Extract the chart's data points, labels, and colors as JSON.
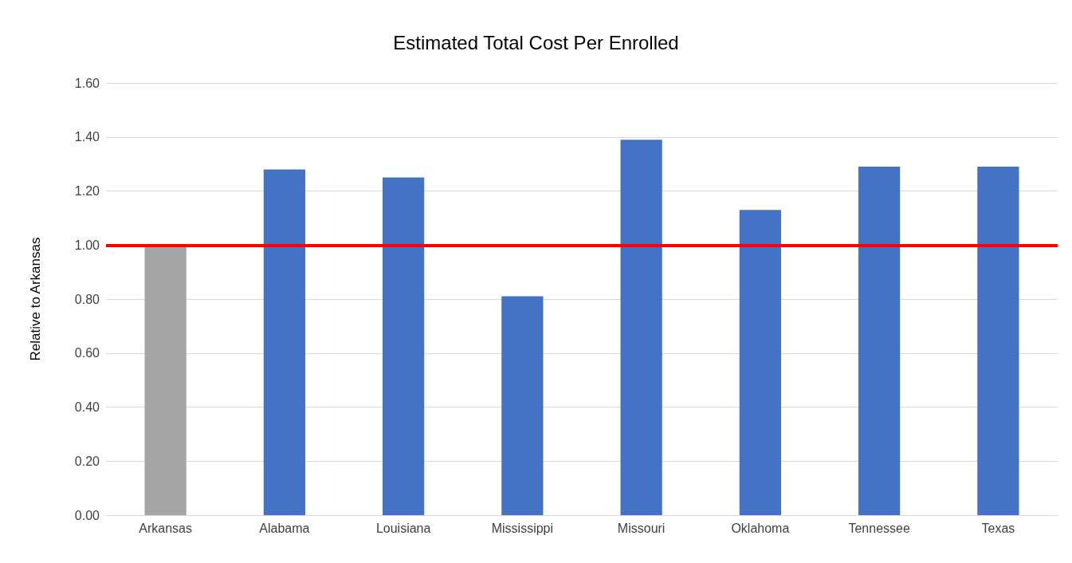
{
  "chart_data": {
    "type": "bar",
    "title": "Estimated Total Cost Per Enrolled",
    "ylabel": "Relative to Arkansas",
    "categories": [
      "Arkansas",
      "Alabama",
      "Louisiana",
      "Mississippi",
      "Missouri",
      "Oklahoma",
      "Tennessee",
      "Texas"
    ],
    "values": [
      1.0,
      1.28,
      1.25,
      0.81,
      1.39,
      1.13,
      1.29,
      1.29
    ],
    "colors": [
      "#a5a5a5",
      "#4472c4",
      "#4472c4",
      "#4472c4",
      "#4472c4",
      "#4472c4",
      "#4472c4",
      "#4472c4"
    ],
    "ylim": [
      0,
      1.6
    ],
    "yticks": [
      {
        "value": 0,
        "label": "0.00"
      },
      {
        "value": 0.2,
        "label": "0.20"
      },
      {
        "value": 0.4,
        "label": "0.40"
      },
      {
        "value": 0.6,
        "label": "0.60"
      },
      {
        "value": 0.8,
        "label": "0.80"
      },
      {
        "value": 1,
        "label": "1.00"
      },
      {
        "value": 1.2,
        "label": "1.20"
      },
      {
        "value": 1.4,
        "label": "1.40"
      },
      {
        "value": 1.6,
        "label": "1.60"
      }
    ],
    "grid": "y",
    "ref_lines": [
      {
        "axis": "y",
        "value": 1,
        "color": "#ff0000",
        "line_style": "solid"
      }
    ]
  }
}
